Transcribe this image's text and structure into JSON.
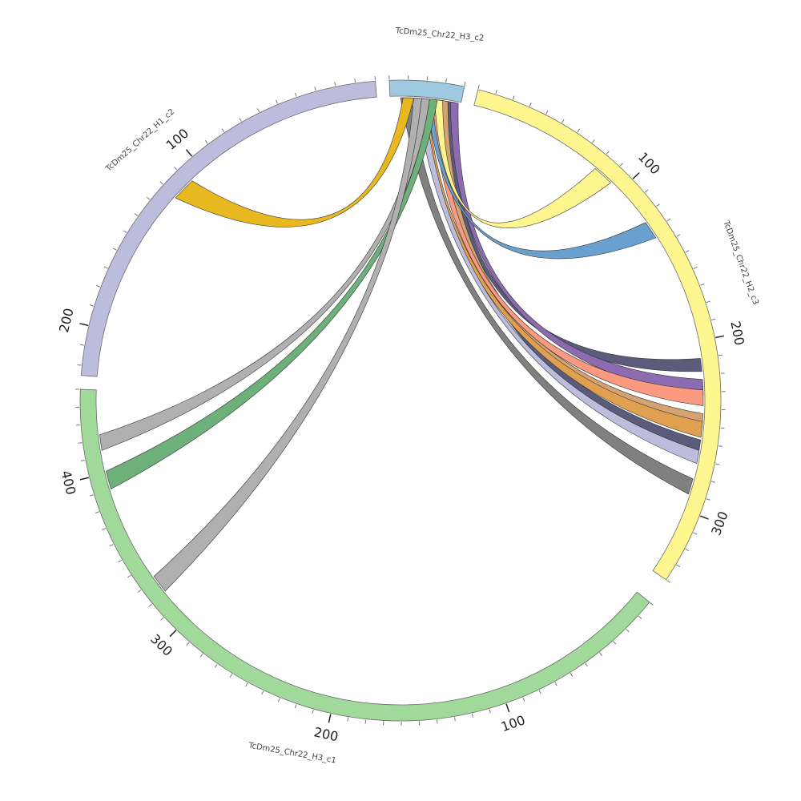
{
  "diagram": {
    "type": "chord",
    "segments": [
      {
        "id": "h3c2",
        "label": "TcDm25_Chr22_H3_c2",
        "color": "#9ecae1",
        "length": 40,
        "tick_labels": []
      },
      {
        "id": "h2c3",
        "label": "TcDm25_Chr22_H2_c3",
        "color": "#fff68f",
        "length": 340,
        "tick_labels": [
          "100",
          "200",
          "300"
        ]
      },
      {
        "id": "h3c1",
        "label": "TcDm25_Chr22_H3_c1",
        "color": "#a1d99b",
        "length": 450,
        "tick_labels": [
          "100",
          "200",
          "300",
          "400"
        ]
      },
      {
        "id": "h1c2",
        "label": "TcDm25_Chr22_H1_c2",
        "color": "#bcbddc",
        "length": 225,
        "tick_labels": [
          "100",
          "200"
        ]
      }
    ],
    "links": [
      {
        "from": "h3c2",
        "to": "h2c3",
        "color": "#5b5b7b"
      },
      {
        "from": "h3c2",
        "to": "h2c3",
        "color": "#5b5b7b"
      },
      {
        "from": "h3c2",
        "to": "h2c3",
        "color": "#8c6bb1"
      },
      {
        "from": "h3c2",
        "to": "h2c3",
        "color": "#d4a373"
      },
      {
        "from": "h3c2",
        "to": "h2c3",
        "color": "#fb9a80"
      },
      {
        "from": "h3c2",
        "to": "h2c3",
        "color": "#e0a050"
      },
      {
        "from": "h3c2",
        "to": "h2c3",
        "color": "#bcbddc"
      },
      {
        "from": "h3c2",
        "to": "h2c3",
        "color": "#808080"
      },
      {
        "from": "h3c2",
        "to": "h2c3",
        "color": "#fff68f"
      },
      {
        "from": "h3c2",
        "to": "h2c3",
        "color": "#6aa0d0"
      },
      {
        "from": "h3c2",
        "to": "h1c2",
        "color": "#e8b820"
      },
      {
        "from": "h3c2",
        "to": "h3c1",
        "color": "#6db07a"
      },
      {
        "from": "h3c2",
        "to": "h3c1",
        "color": "#b0b0b0"
      },
      {
        "from": "h3c2",
        "to": "h3c1",
        "color": "#b0b0b0"
      }
    ]
  }
}
